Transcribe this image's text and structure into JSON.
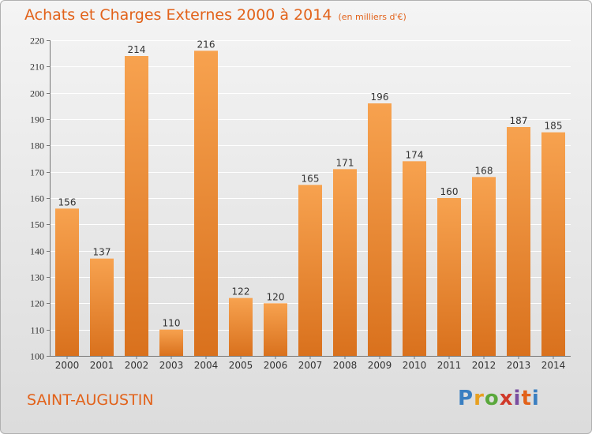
{
  "header": {
    "title": "Achats et Charges Externes 2000 à 2014",
    "subtitle": "(en milliers d'€)"
  },
  "footer": {
    "place": "SAINT-AUGUSTIN",
    "brand_letters": [
      "P",
      "r",
      "o",
      "x",
      "i",
      "t",
      "i"
    ],
    "brand_colors": [
      "#3a7fc1",
      "#e8a020",
      "#5aa83c",
      "#d03a2a",
      "#7a4ea0",
      "#e2621a",
      "#3a7fc1"
    ]
  },
  "colors": {
    "title": "#e2621a",
    "bar_light": "#f7a24f",
    "bar_dark": "#d9711d"
  },
  "chart_data": {
    "type": "bar",
    "categories": [
      "2000",
      "2001",
      "2002",
      "2003",
      "2004",
      "2005",
      "2006",
      "2007",
      "2008",
      "2009",
      "2010",
      "2011",
      "2012",
      "2013",
      "2014"
    ],
    "values": [
      156,
      137,
      214,
      110,
      216,
      122,
      120,
      165,
      171,
      196,
      174,
      160,
      168,
      187,
      185
    ],
    "title": "Achats et Charges Externes 2000 à 2014",
    "subtitle": "(en milliers d'€)",
    "xlabel": "",
    "ylabel": "",
    "ylim": [
      100,
      220
    ],
    "yticks": [
      100,
      110,
      120,
      130,
      140,
      150,
      160,
      170,
      180,
      190,
      200,
      210,
      220
    ],
    "grid": true,
    "data_labels": true
  }
}
